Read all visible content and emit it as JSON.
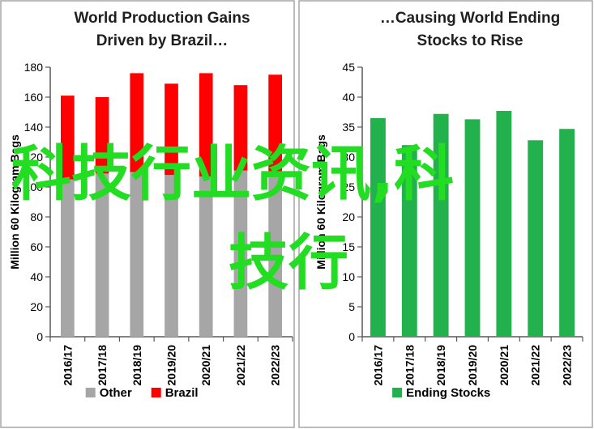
{
  "chart_data": [
    {
      "type": "bar",
      "stacked": true,
      "title_lines": [
        "World Production Gains",
        "Driven by Brazil…"
      ],
      "ylabel": "Million 60 Kilogram Bags",
      "ylim": [
        0,
        180
      ],
      "yticks": [
        0,
        20,
        40,
        60,
        80,
        100,
        120,
        140,
        160,
        180
      ],
      "categories": [
        "2016/17",
        "2017/18",
        "2018/19",
        "2019/20",
        "2020/21",
        "2021/22",
        "2022/23"
      ],
      "series": [
        {
          "name": "Other",
          "color": "#a6a6a6",
          "values": [
            105,
            109,
            110,
            108,
            107,
            111,
            110
          ]
        },
        {
          "name": "Brazil",
          "color": "#ff0000",
          "values": [
            56,
            51,
            66,
            61,
            69,
            57,
            65
          ]
        }
      ],
      "legend": "bottom",
      "grid": false
    },
    {
      "type": "bar",
      "title_lines": [
        "…Causing World Ending",
        "Stocks to Rise"
      ],
      "ylabel": "Million 60 Kilogram Bags",
      "ylim": [
        0,
        45
      ],
      "yticks": [
        0,
        5,
        10,
        15,
        20,
        25,
        30,
        35,
        40,
        45
      ],
      "categories": [
        "2016/17",
        "2017/18",
        "2018/19",
        "2019/20",
        "2020/21",
        "2021/22",
        "2022/23"
      ],
      "series": [
        {
          "name": "Ending Stocks",
          "color": "#22b14c",
          "values": [
            36.5,
            32.0,
            37.2,
            36.3,
            37.7,
            32.8,
            34.7
          ]
        }
      ],
      "legend": "bottom",
      "grid": false
    }
  ],
  "watermark": {
    "lines": [
      "科技行业资讯,科",
      "技行"
    ],
    "color": "#22dd22"
  }
}
